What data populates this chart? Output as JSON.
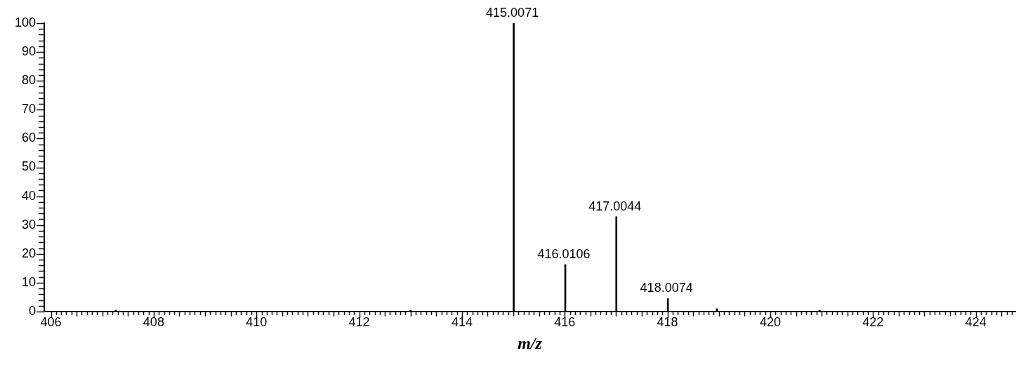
{
  "chart_data": {
    "type": "bar",
    "xlabel": "m/z",
    "x": [
      407.26,
      413.0,
      415.0071,
      416.0106,
      417.0044,
      418.0074,
      418.96,
      420.96
    ],
    "values": [
      0.5,
      0.5,
      100,
      16.3,
      32.9,
      4.5,
      1,
      0.5
    ],
    "annotations": [
      {
        "text": "415.0071",
        "x": 415.0071,
        "y": 100
      },
      {
        "text": "416.0106",
        "x": 416.0106,
        "y": 16.3
      },
      {
        "text": "417.0044",
        "x": 417.0044,
        "y": 32.9
      },
      {
        "text": "418.0074",
        "x": 418.0074,
        "y": 4.5
      }
    ],
    "color": "#000000",
    "grid": false,
    "xlim": [
      405.92,
      424.72
    ],
    "xticks": [
      406,
      {
        "value": 406.1,
        "label": null
      },
      {
        "value": 406.2,
        "label": null
      },
      {
        "value": 406.3,
        "label": null
      },
      {
        "value": 406.4,
        "label": null
      },
      {
        "value": 406.5,
        "label": null
      },
      {
        "value": 406.6,
        "label": null
      },
      {
        "value": 406.7,
        "label": null
      },
      {
        "value": 406.8,
        "label": null
      },
      {
        "value": 406.9,
        "label": null
      },
      {
        "value": 407,
        "label": null
      },
      {
        "value": 407.1,
        "label": null
      },
      {
        "value": 407.2,
        "label": null
      },
      {
        "value": 407.3,
        "label": null
      },
      {
        "value": 407.4,
        "label": null
      },
      {
        "value": 407.5,
        "label": null
      },
      {
        "value": 407.6,
        "label": null
      },
      {
        "value": 407.7,
        "label": null
      },
      {
        "value": 407.8,
        "label": null
      },
      {
        "value": 407.9,
        "label": null
      },
      408,
      {
        "value": 408.1,
        "label": null
      },
      {
        "value": 408.2,
        "label": null
      },
      {
        "value": 408.3,
        "label": null
      },
      {
        "value": 408.4,
        "label": null
      },
      {
        "value": 408.5,
        "label": null
      },
      {
        "value": 408.6,
        "label": null
      },
      {
        "value": 408.7,
        "label": null
      },
      {
        "value": 408.8,
        "label": null
      },
      {
        "value": 408.9,
        "label": null
      },
      {
        "value": 409,
        "label": null
      },
      {
        "value": 409.1,
        "label": null
      },
      {
        "value": 409.2,
        "label": null
      },
      {
        "value": 409.3,
        "label": null
      },
      {
        "value": 409.4,
        "label": null
      },
      {
        "value": 409.5,
        "label": null
      },
      {
        "value": 409.6,
        "label": null
      },
      {
        "value": 409.7,
        "label": null
      },
      {
        "value": 409.8,
        "label": null
      },
      {
        "value": 409.9,
        "label": null
      },
      410,
      {
        "value": 410.1,
        "label": null
      },
      {
        "value": 410.2,
        "label": null
      },
      {
        "value": 410.3,
        "label": null
      },
      {
        "value": 410.4,
        "label": null
      },
      {
        "value": 410.5,
        "label": null
      },
      {
        "value": 410.6,
        "label": null
      },
      {
        "value": 410.7,
        "label": null
      },
      {
        "value": 410.8,
        "label": null
      },
      {
        "value": 410.9,
        "label": null
      },
      {
        "value": 411,
        "label": null
      },
      {
        "value": 411.1,
        "label": null
      },
      {
        "value": 411.2,
        "label": null
      },
      {
        "value": 411.3,
        "label": null
      },
      {
        "value": 411.4,
        "label": null
      },
      {
        "value": 411.5,
        "label": null
      },
      {
        "value": 411.6,
        "label": null
      },
      {
        "value": 411.7,
        "label": null
      },
      {
        "value": 411.8,
        "label": null
      },
      {
        "value": 411.9,
        "label": null
      },
      412,
      {
        "value": 412.1,
        "label": null
      },
      {
        "value": 412.2,
        "label": null
      },
      {
        "value": 412.3,
        "label": null
      },
      {
        "value": 412.4,
        "label": null
      },
      {
        "value": 412.5,
        "label": null
      },
      {
        "value": 412.6,
        "label": null
      },
      {
        "value": 412.7,
        "label": null
      },
      {
        "value": 412.8,
        "label": null
      },
      {
        "value": 412.9,
        "label": null
      },
      {
        "value": 413,
        "label": null
      },
      {
        "value": 413.1,
        "label": null
      },
      {
        "value": 413.2,
        "label": null
      },
      {
        "value": 413.3,
        "label": null
      },
      {
        "value": 413.4,
        "label": null
      },
      {
        "value": 413.5,
        "label": null
      },
      {
        "value": 413.6,
        "label": null
      },
      {
        "value": 413.7,
        "label": null
      },
      {
        "value": 413.8,
        "label": null
      },
      {
        "value": 413.9,
        "label": null
      },
      414,
      {
        "value": 414.1,
        "label": null
      },
      {
        "value": 414.2,
        "label": null
      },
      {
        "value": 414.3,
        "label": null
      },
      {
        "value": 414.4,
        "label": null
      },
      {
        "value": 414.5,
        "label": null
      },
      {
        "value": 414.6,
        "label": null
      },
      {
        "value": 414.7,
        "label": null
      },
      {
        "value": 414.8,
        "label": null
      },
      {
        "value": 414.9,
        "label": null
      },
      {
        "value": 415,
        "label": null
      },
      {
        "value": 415.1,
        "label": null
      },
      {
        "value": 415.2,
        "label": null
      },
      {
        "value": 415.3,
        "label": null
      },
      {
        "value": 415.4,
        "label": null
      },
      {
        "value": 415.5,
        "label": null
      },
      {
        "value": 415.6,
        "label": null
      },
      {
        "value": 415.7,
        "label": null
      },
      {
        "value": 415.8,
        "label": null
      },
      {
        "value": 415.9,
        "label": null
      },
      416,
      {
        "value": 416.1,
        "label": null
      },
      {
        "value": 416.2,
        "label": null
      },
      {
        "value": 416.3,
        "label": null
      },
      {
        "value": 416.4,
        "label": null
      },
      {
        "value": 416.5,
        "label": null
      },
      {
        "value": 416.6,
        "label": null
      },
      {
        "value": 416.7,
        "label": null
      },
      {
        "value": 416.8,
        "label": null
      },
      {
        "value": 416.9,
        "label": null
      },
      {
        "value": 417,
        "label": null
      },
      {
        "value": 417.1,
        "label": null
      },
      {
        "value": 417.2,
        "label": null
      },
      {
        "value": 417.3,
        "label": null
      },
      {
        "value": 417.4,
        "label": null
      },
      {
        "value": 417.5,
        "label": null
      },
      {
        "value": 417.6,
        "label": null
      },
      {
        "value": 417.7,
        "label": null
      },
      {
        "value": 417.8,
        "label": null
      },
      {
        "value": 417.9,
        "label": null
      },
      418,
      {
        "value": 418.1,
        "label": null
      },
      {
        "value": 418.2,
        "label": null
      },
      {
        "value": 418.3,
        "label": null
      },
      {
        "value": 418.4,
        "label": null
      },
      {
        "value": 418.5,
        "label": null
      },
      {
        "value": 418.6,
        "label": null
      },
      {
        "value": 418.7,
        "label": null
      },
      {
        "value": 418.8,
        "label": null
      },
      {
        "value": 418.9,
        "label": null
      },
      {
        "value": 419,
        "label": null
      },
      {
        "value": 419.1,
        "label": null
      },
      {
        "value": 419.2,
        "label": null
      },
      {
        "value": 419.3,
        "label": null
      },
      {
        "value": 419.4,
        "label": null
      },
      {
        "value": 419.5,
        "label": null
      },
      {
        "value": 419.6,
        "label": null
      },
      {
        "value": 419.7,
        "label": null
      },
      {
        "value": 419.8,
        "label": null
      },
      {
        "value": 419.9,
        "label": null
      },
      420,
      {
        "value": 420.1,
        "label": null
      },
      {
        "value": 420.2,
        "label": null
      },
      {
        "value": 420.3,
        "label": null
      },
      {
        "value": 420.4,
        "label": null
      },
      {
        "value": 420.5,
        "label": null
      },
      {
        "value": 420.6,
        "label": null
      },
      {
        "value": 420.7,
        "label": null
      },
      {
        "value": 420.8,
        "label": null
      },
      {
        "value": 420.9,
        "label": null
      },
      {
        "value": 421,
        "label": null
      },
      {
        "value": 421.1,
        "label": null
      },
      {
        "value": 421.2,
        "label": null
      },
      {
        "value": 421.3,
        "label": null
      },
      {
        "value": 421.4,
        "label": null
      },
      {
        "value": 421.5,
        "label": null
      },
      {
        "value": 421.6,
        "label": null
      },
      {
        "value": 421.7,
        "label": null
      },
      {
        "value": 421.8,
        "label": null
      },
      {
        "value": 421.9,
        "label": null
      },
      422,
      {
        "value": 422.1,
        "label": null
      },
      {
        "value": 422.2,
        "label": null
      },
      {
        "value": 422.3,
        "label": null
      },
      {
        "value": 422.4,
        "label": null
      },
      {
        "value": 422.5,
        "label": null
      },
      {
        "value": 422.6,
        "label": null
      },
      {
        "value": 422.7,
        "label": null
      },
      {
        "value": 422.8,
        "label": null
      },
      {
        "value": 422.9,
        "label": null
      },
      {
        "value": 423,
        "label": null
      },
      {
        "value": 423.1,
        "label": null
      },
      {
        "value": 423.2,
        "label": null
      },
      {
        "value": 423.3,
        "label": null
      },
      {
        "value": 423.4,
        "label": null
      },
      {
        "value": 423.5,
        "label": null
      },
      {
        "value": 423.6,
        "label": null
      },
      {
        "value": 423.7,
        "label": null
      },
      {
        "value": 423.8,
        "label": null
      },
      {
        "value": 423.9,
        "label": null
      },
      424,
      {
        "value": 424.1,
        "label": null
      },
      {
        "value": 424.2,
        "label": null
      },
      {
        "value": 424.3,
        "label": null
      },
      {
        "value": 424.4,
        "label": null
      },
      {
        "value": 424.5,
        "label": null
      },
      {
        "value": 424.6,
        "label": null
      },
      {
        "value": 424.7,
        "label": null
      }
    ],
    "ylim": [
      0,
      100
    ],
    "yticks": [
      0,
      {
        "value": 2,
        "label": null
      },
      {
        "value": 4,
        "label": null
      },
      {
        "value": 6,
        "label": null
      },
      {
        "value": 8,
        "label": null
      },
      10,
      {
        "value": 12,
        "label": null
      },
      {
        "value": 14,
        "label": null
      },
      {
        "value": 16,
        "label": null
      },
      {
        "value": 18,
        "label": null
      },
      20,
      {
        "value": 22,
        "label": null
      },
      {
        "value": 24,
        "label": null
      },
      {
        "value": 26,
        "label": null
      },
      {
        "value": 28,
        "label": null
      },
      30,
      {
        "value": 32,
        "label": null
      },
      {
        "value": 34,
        "label": null
      },
      {
        "value": 36,
        "label": null
      },
      {
        "value": 38,
        "label": null
      },
      40,
      {
        "value": 42,
        "label": null
      },
      {
        "value": 44,
        "label": null
      },
      {
        "value": 46,
        "label": null
      },
      {
        "value": 48,
        "label": null
      },
      50,
      {
        "value": 52,
        "label": null
      },
      {
        "value": 54,
        "label": null
      },
      {
        "value": 56,
        "label": null
      },
      {
        "value": 58,
        "label": null
      },
      60,
      {
        "value": 62,
        "label": null
      },
      {
        "value": 64,
        "label": null
      },
      {
        "value": 66,
        "label": null
      },
      {
        "value": 68,
        "label": null
      },
      70,
      {
        "value": 72,
        "label": null
      },
      {
        "value": 74,
        "label": null
      },
      {
        "value": 76,
        "label": null
      },
      {
        "value": 78,
        "label": null
      },
      80,
      {
        "value": 82,
        "label": null
      },
      {
        "value": 84,
        "label": null
      },
      {
        "value": 86,
        "label": null
      },
      {
        "value": 88,
        "label": null
      },
      90,
      {
        "value": 92,
        "label": null
      },
      {
        "value": 94,
        "label": null
      },
      {
        "value": 96,
        "label": null
      },
      {
        "value": 98,
        "label": null
      },
      100
    ]
  }
}
